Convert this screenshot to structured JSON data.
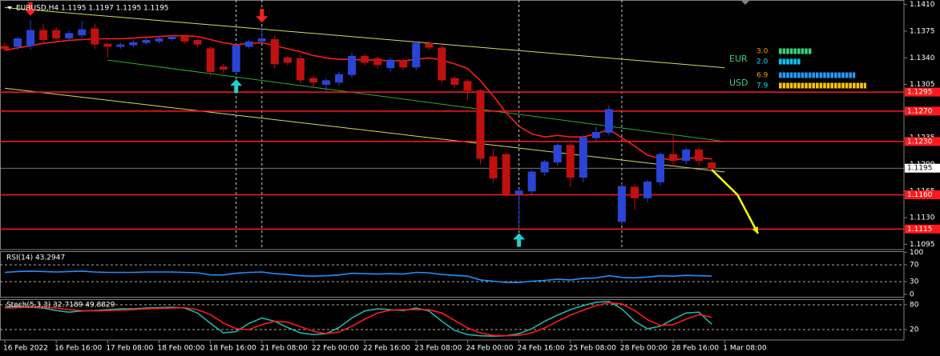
{
  "chart_data": [
    {
      "type": "candlestick",
      "title": "EURUSD,H4  1.1195 1.1197 1.1195 1.1195",
      "categories": [
        "16 Feb 2022",
        null,
        null,
        null,
        "16 Feb 16:00",
        null,
        null,
        null,
        "17 Feb 08:00",
        null,
        null,
        null,
        "18 Feb 00:00",
        null,
        null,
        null,
        "18 Feb 16:00",
        null,
        null,
        null,
        "21 Feb 08:00",
        null,
        null,
        null,
        "22 Feb 00:00",
        null,
        null,
        null,
        "22 Feb 16:00",
        null,
        null,
        null,
        "23 Feb 08:00",
        null,
        null,
        null,
        "24 Feb 00:00",
        null,
        null,
        null,
        "24 Feb 16:00",
        null,
        null,
        null,
        "25 Feb 08:00",
        null,
        null,
        null,
        "28 Feb 00:00",
        null,
        null,
        null,
        "28 Feb 16:00",
        null,
        null,
        null,
        "1 Mar 08:00"
      ],
      "open": [
        1.1355,
        1.1355,
        1.1356,
        1.1376,
        1.1376,
        1.1366,
        1.137,
        1.1378,
        1.1358,
        1.1355,
        1.1357,
        1.136,
        1.1362,
        1.1365,
        1.1368,
        1.1363,
        1.1352,
        1.1328,
        1.1322,
        1.1355,
        1.1362,
        1.1364,
        1.134,
        1.1339,
        1.1313,
        1.1305,
        1.1308,
        1.1318,
        1.1342,
        1.1339,
        1.1327,
        1.1336,
        1.1328,
        1.1359,
        1.1353,
        1.1313,
        1.1309,
        1.1297,
        1.121,
        1.1213,
        1.1161,
        1.1165,
        1.119,
        1.1203,
        1.1225,
        1.1183,
        1.1235,
        1.1242,
        1.1125,
        1.117,
        1.1156,
        1.1177,
        1.1213,
        1.1205,
        1.1219,
        1.1202,
        null
      ],
      "high": [
        1.136,
        1.1368,
        1.139,
        1.1385,
        1.138,
        1.1376,
        1.1388,
        1.1385,
        1.136,
        1.136,
        1.1363,
        1.1366,
        1.1368,
        1.137,
        1.137,
        1.1365,
        1.1355,
        1.1332,
        1.1358,
        1.1364,
        1.1381,
        1.137,
        1.1342,
        1.1344,
        1.1316,
        1.1313,
        1.1322,
        1.1348,
        1.1346,
        1.1342,
        1.134,
        1.1339,
        1.1362,
        1.1362,
        1.1356,
        1.1316,
        1.1312,
        1.1299,
        1.122,
        1.1215,
        1.1168,
        1.1193,
        1.1206,
        1.1228,
        1.1228,
        1.1238,
        1.125,
        1.1278,
        1.1175,
        1.1174,
        1.118,
        1.1216,
        1.124,
        1.1222,
        1.1222,
        1.1205,
        null
      ],
      "low": [
        1.1348,
        1.135,
        1.1351,
        1.136,
        1.1362,
        1.1362,
        1.1366,
        1.1352,
        1.134,
        1.1352,
        1.1354,
        1.1357,
        1.1359,
        1.1362,
        1.1359,
        1.1354,
        1.1315,
        1.132,
        1.1317,
        1.1352,
        1.1359,
        1.1326,
        1.133,
        1.1306,
        1.1302,
        1.1296,
        1.1303,
        1.1314,
        1.133,
        1.1326,
        1.1322,
        1.1324,
        1.1324,
        1.135,
        1.1306,
        1.13,
        1.1285,
        1.12,
        1.1176,
        1.1157,
        1.1115,
        1.116,
        1.1185,
        1.1198,
        1.117,
        1.1176,
        1.123,
        1.1238,
        1.112,
        1.114,
        1.115,
        1.1172,
        1.1198,
        1.12,
        1.1198,
        1.1193,
        null
      ],
      "close": [
        1.1352,
        1.1365,
        1.1376,
        1.1364,
        1.1366,
        1.1372,
        1.1377,
        1.1358,
        1.1355,
        1.1357,
        1.136,
        1.1363,
        1.1365,
        1.1367,
        1.1362,
        1.1358,
        1.1322,
        1.1325,
        1.1356,
        1.1361,
        1.1365,
        1.1332,
        1.1334,
        1.1311,
        1.1308,
        1.131,
        1.1318,
        1.1342,
        1.1334,
        1.1331,
        1.1337,
        1.1328,
        1.1359,
        1.1354,
        1.1311,
        1.1305,
        1.1297,
        1.1208,
        1.1182,
        1.1161,
        1.1165,
        1.119,
        1.1203,
        1.1225,
        1.1183,
        1.1235,
        1.1242,
        1.1272,
        1.1171,
        1.1156,
        1.1177,
        1.1213,
        1.1205,
        1.1219,
        1.1205,
        1.1195,
        null
      ],
      "up_color": "#2a45d6",
      "down_color": "#c01010",
      "lines": [
        {
          "color": "#ff1a1a",
          "values": [
            1.135,
            1.1353,
            1.1356,
            1.1359,
            1.1361,
            1.1363,
            1.1364,
            1.1365,
            1.1365,
            1.1365,
            1.1366,
            1.1367,
            1.1368,
            1.1369,
            1.1369,
            1.1368,
            1.1364,
            1.136,
            1.1357,
            1.1359,
            1.136,
            1.1356,
            1.1352,
            1.1348,
            1.1343,
            1.134,
            1.1338,
            1.1338,
            1.1337,
            1.1337,
            1.1336,
            1.1336,
            1.1338,
            1.134,
            1.1337,
            1.1332,
            1.1326,
            1.131,
            1.129,
            1.1268,
            1.125,
            1.124,
            1.1236,
            1.1238,
            1.1236,
            1.1236,
            1.124,
            1.1246,
            1.1235,
            1.1224,
            1.1212,
            1.1208,
            1.1206,
            1.1208,
            1.1209,
            1.1207,
            null
          ]
        }
      ],
      "trendlines": [
        {
          "color": "#d8d860",
          "x": [
            0,
            56
          ],
          "values": [
            1.1406,
            1.1327
          ]
        },
        {
          "color": "#d8d860",
          "x": [
            0,
            56
          ],
          "values": [
            1.13,
            1.119
          ]
        },
        {
          "color": "#2eaa2e",
          "x": [
            8,
            56
          ],
          "values": [
            1.1337,
            1.123
          ]
        }
      ],
      "levels": [
        1.1295,
        {
          "value": 1.127,
          "label": "1.1270"
        },
        {
          "value": 1.123,
          "label": "1.1230"
        },
        {
          "value": 1.116,
          "label": "1.1160"
        },
        1.1115
      ],
      "level_color": "#ff1a1a",
      "current": 1.1195,
      "signals": [
        {
          "index": 2,
          "dir": "down"
        },
        {
          "index": 20,
          "dir": "down"
        },
        {
          "index": 18,
          "dir": "up"
        },
        {
          "index": 40,
          "dir": "up"
        }
      ],
      "vlines": [
        18,
        20,
        40,
        48
      ],
      "forecast": {
        "color": "#ffff00",
        "x": [
          55,
          57,
          58.6
        ],
        "values": [
          1.1193,
          1.116,
          1.1109
        ]
      },
      "strength": [
        {
          "name": "EUR",
          "values": [
            3,
            2
          ],
          "value_labels": [
            "3.0",
            "2.0"
          ],
          "colors": [
            "#ff9900",
            "#00e5ff"
          ],
          "bar_colors": [
            "#3ad07a",
            "#00c8ff"
          ]
        },
        {
          "name": "USD",
          "values": [
            6.9,
            7.9
          ],
          "value_labels": [
            "6.9",
            "7.9"
          ],
          "colors": [
            "#ff9900",
            "#00e5ff"
          ],
          "bar_colors": [
            "#1e9cff",
            "#ffc400"
          ]
        }
      ],
      "ylim": [
        1.1088,
        1.1416
      ],
      "yticks": [
        {
          "value": 1.141,
          "label": "1.1410"
        },
        1.1375,
        {
          "value": 1.134,
          "label": "1.1340"
        },
        1.1305,
        {
          "value": 1.127,
          "label": "1.1270"
        },
        1.1235,
        {
          "value": 1.12,
          "label": "1.1200"
        },
        1.1165,
        {
          "value": 1.113,
          "label": "1.1130"
        },
        1.1095
      ]
    },
    {
      "type": "line",
      "title": "RSI(14) 43.2947",
      "series": [
        {
          "color": "#1e90ff",
          "values": [
            52,
            54,
            55,
            54,
            53,
            54,
            55,
            53,
            52,
            52,
            52,
            53,
            53,
            53,
            52,
            51,
            46,
            46,
            50,
            52,
            53,
            49,
            47,
            44,
            43,
            44,
            46,
            50,
            49,
            48,
            49,
            48,
            52,
            51,
            47,
            45,
            43,
            34,
            31,
            28,
            28,
            31,
            33,
            36,
            34,
            38,
            39,
            44,
            40,
            39,
            41,
            44,
            43,
            45,
            44,
            43.2947,
            null
          ]
        }
      ],
      "ylim": [
        0,
        100
      ],
      "yticks": [
        0,
        30,
        70,
        100
      ]
    },
    {
      "type": "line",
      "title": "Stoch(5,3,3) 32.7189 49.8829",
      "series": [
        {
          "color": "#20b2aa",
          "values": [
            75,
            76,
            74,
            72,
            66,
            62,
            65,
            66,
            68,
            70,
            70,
            72,
            73,
            74,
            72,
            60,
            35,
            12,
            15,
            35,
            48,
            40,
            25,
            12,
            8,
            10,
            25,
            48,
            65,
            70,
            68,
            66,
            72,
            65,
            40,
            18,
            8,
            5,
            4,
            5,
            10,
            22,
            40,
            55,
            68,
            78,
            86,
            88,
            70,
            40,
            22,
            28,
            45,
            60,
            62,
            32.7189,
            null
          ]
        },
        {
          "color": "#ff1a1a",
          "values": [
            72,
            73,
            74,
            74,
            72,
            68,
            66,
            65,
            66,
            67,
            68,
            70,
            71,
            72,
            73,
            68,
            56,
            36,
            22,
            20,
            32,
            40,
            38,
            27,
            16,
            10,
            14,
            28,
            45,
            60,
            67,
            68,
            68,
            68,
            60,
            42,
            24,
            12,
            6,
            5,
            6,
            12,
            24,
            40,
            55,
            67,
            78,
            85,
            82,
            66,
            44,
            30,
            32,
            45,
            56,
            49.8829,
            null
          ]
        }
      ],
      "ylim": [
        0,
        100
      ],
      "yticks": [
        20,
        80
      ]
    }
  ]
}
